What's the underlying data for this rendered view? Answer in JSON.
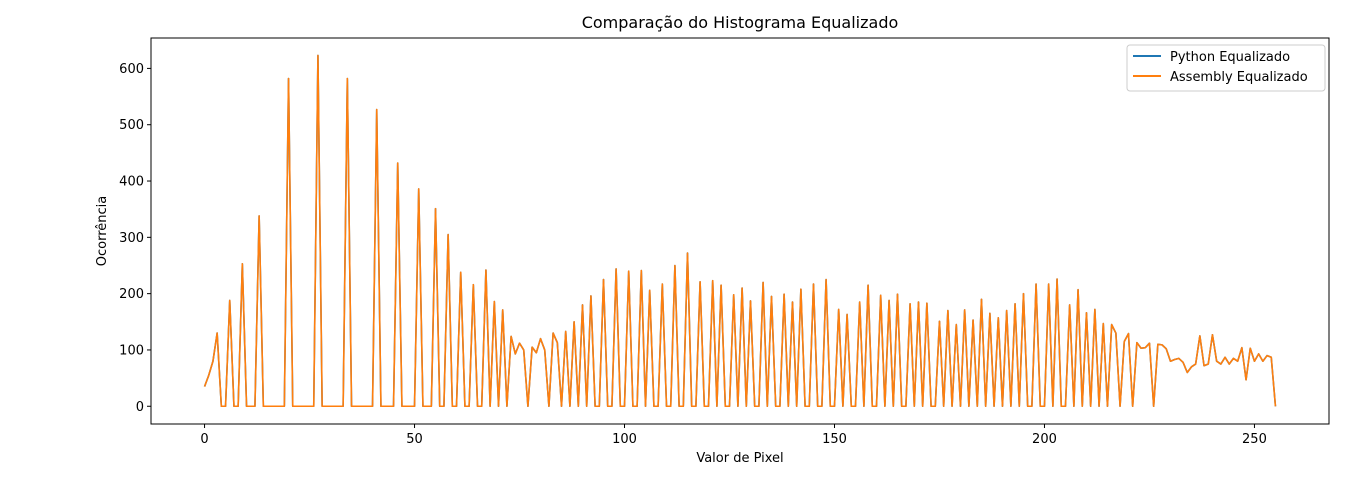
{
  "chart_data": {
    "type": "line",
    "title": "Comparação do Histograma Equalizado",
    "xlabel": "Valor de Pixel",
    "ylabel": "Ocorrência",
    "xlim": [
      -12.75,
      267.75
    ],
    "ylim": [
      -31.5,
      654
    ],
    "xticks": [
      0,
      50,
      100,
      150,
      200,
      250
    ],
    "yticks": [
      0,
      100,
      200,
      300,
      400,
      500,
      600
    ],
    "grid": false,
    "legend_position": "top-right",
    "x": [
      0,
      1,
      2,
      3,
      4,
      5,
      6,
      7,
      8,
      9,
      10,
      11,
      12,
      13,
      14,
      15,
      16,
      17,
      18,
      19,
      20,
      21,
      22,
      23,
      24,
      25,
      26,
      27,
      28,
      29,
      30,
      31,
      32,
      33,
      34,
      35,
      36,
      37,
      38,
      39,
      40,
      41,
      42,
      43,
      44,
      45,
      46,
      47,
      48,
      49,
      50,
      51,
      52,
      53,
      54,
      55,
      56,
      57,
      58,
      59,
      60,
      61,
      62,
      63,
      64,
      65,
      66,
      67,
      68,
      69,
      70,
      71,
      72,
      73,
      74,
      75,
      76,
      77,
      78,
      79,
      80,
      81,
      82,
      83,
      84,
      85,
      86,
      87,
      88,
      89,
      90,
      91,
      92,
      93,
      94,
      95,
      96,
      97,
      98,
      99,
      100,
      101,
      102,
      103,
      104,
      105,
      106,
      107,
      108,
      109,
      110,
      111,
      112,
      113,
      114,
      115,
      116,
      117,
      118,
      119,
      120,
      121,
      122,
      123,
      124,
      125,
      126,
      127,
      128,
      129,
      130,
      131,
      132,
      133,
      134,
      135,
      136,
      137,
      138,
      139,
      140,
      141,
      142,
      143,
      144,
      145,
      146,
      147,
      148,
      149,
      150,
      151,
      152,
      153,
      154,
      155,
      156,
      157,
      158,
      159,
      160,
      161,
      162,
      163,
      164,
      165,
      166,
      167,
      168,
      169,
      170,
      171,
      172,
      173,
      174,
      175,
      176,
      177,
      178,
      179,
      180,
      181,
      182,
      183,
      184,
      185,
      186,
      187,
      188,
      189,
      190,
      191,
      192,
      193,
      194,
      195,
      196,
      197,
      198,
      199,
      200,
      201,
      202,
      203,
      204,
      205,
      206,
      207,
      208,
      209,
      210,
      211,
      212,
      213,
      214,
      215,
      216,
      217,
      218,
      219,
      220,
      221,
      222,
      223,
      224,
      225,
      226,
      227,
      228,
      229,
      230,
      231,
      232,
      233,
      234,
      235,
      236,
      237,
      238,
      239,
      240,
      241,
      242,
      243,
      244,
      245,
      246,
      247,
      248,
      249,
      250,
      251,
      252,
      253,
      254,
      255
    ],
    "series": [
      {
        "name": "Python Equalizado",
        "color": "#1f77b4",
        "values": [
          35,
          55,
          80,
          130,
          0,
          0,
          188,
          0,
          0,
          253,
          0,
          0,
          0,
          338,
          0,
          0,
          0,
          0,
          0,
          0,
          582,
          0,
          0,
          0,
          0,
          0,
          0,
          623,
          0,
          0,
          0,
          0,
          0,
          0,
          582,
          0,
          0,
          0,
          0,
          0,
          0,
          527,
          0,
          0,
          0,
          0,
          432,
          0,
          0,
          0,
          0,
          386,
          0,
          0,
          0,
          351,
          0,
          0,
          305,
          0,
          0,
          238,
          0,
          0,
          216,
          0,
          0,
          242,
          0,
          186,
          0,
          171,
          0,
          124,
          93,
          112,
          100,
          0,
          105,
          95,
          120,
          100,
          0,
          130,
          113,
          0,
          133,
          0,
          150,
          0,
          180,
          0,
          196,
          0,
          0,
          225,
          0,
          0,
          244,
          0,
          0,
          240,
          0,
          0,
          241,
          0,
          206,
          0,
          0,
          217,
          0,
          0,
          250,
          0,
          0,
          272,
          0,
          0,
          221,
          0,
          0,
          223,
          0,
          215,
          0,
          0,
          198,
          0,
          210,
          0,
          187,
          0,
          0,
          220,
          0,
          195,
          0,
          0,
          199,
          0,
          185,
          0,
          208,
          0,
          0,
          217,
          0,
          0,
          225,
          0,
          0,
          172,
          0,
          163,
          0,
          0,
          185,
          0,
          215,
          0,
          0,
          197,
          0,
          188,
          0,
          199,
          0,
          0,
          182,
          0,
          185,
          0,
          183,
          0,
          0,
          151,
          0,
          170,
          0,
          145,
          0,
          171,
          0,
          153,
          0,
          190,
          0,
          165,
          0,
          157,
          0,
          170,
          0,
          182,
          0,
          200,
          0,
          0,
          217,
          0,
          0,
          217,
          0,
          226,
          0,
          0,
          180,
          0,
          207,
          0,
          166,
          0,
          172,
          0,
          147,
          0,
          145,
          130,
          0,
          115,
          129,
          0,
          113,
          103,
          104,
          112,
          0,
          110,
          109,
          102,
          80,
          83,
          85,
          78,
          60,
          70,
          75,
          125,
          72,
          75,
          127,
          80,
          75,
          87,
          75,
          85,
          80,
          104,
          47,
          103,
          80,
          93,
          80,
          90,
          87,
          0
        ]
      },
      {
        "name": "Assembly Equalizado",
        "color": "#ff7f0e",
        "values": [
          35,
          55,
          80,
          130,
          0,
          0,
          188,
          0,
          0,
          253,
          0,
          0,
          0,
          338,
          0,
          0,
          0,
          0,
          0,
          0,
          582,
          0,
          0,
          0,
          0,
          0,
          0,
          623,
          0,
          0,
          0,
          0,
          0,
          0,
          582,
          0,
          0,
          0,
          0,
          0,
          0,
          527,
          0,
          0,
          0,
          0,
          432,
          0,
          0,
          0,
          0,
          386,
          0,
          0,
          0,
          351,
          0,
          0,
          305,
          0,
          0,
          238,
          0,
          0,
          216,
          0,
          0,
          242,
          0,
          186,
          0,
          171,
          0,
          124,
          93,
          112,
          100,
          0,
          105,
          95,
          120,
          100,
          0,
          130,
          113,
          0,
          133,
          0,
          150,
          0,
          180,
          0,
          196,
          0,
          0,
          225,
          0,
          0,
          244,
          0,
          0,
          240,
          0,
          0,
          241,
          0,
          206,
          0,
          0,
          217,
          0,
          0,
          250,
          0,
          0,
          272,
          0,
          0,
          221,
          0,
          0,
          223,
          0,
          215,
          0,
          0,
          198,
          0,
          210,
          0,
          187,
          0,
          0,
          220,
          0,
          195,
          0,
          0,
          199,
          0,
          185,
          0,
          208,
          0,
          0,
          217,
          0,
          0,
          225,
          0,
          0,
          172,
          0,
          163,
          0,
          0,
          185,
          0,
          215,
          0,
          0,
          197,
          0,
          188,
          0,
          199,
          0,
          0,
          182,
          0,
          185,
          0,
          183,
          0,
          0,
          151,
          0,
          170,
          0,
          145,
          0,
          171,
          0,
          153,
          0,
          190,
          0,
          165,
          0,
          157,
          0,
          170,
          0,
          182,
          0,
          200,
          0,
          0,
          217,
          0,
          0,
          217,
          0,
          226,
          0,
          0,
          180,
          0,
          207,
          0,
          166,
          0,
          172,
          0,
          147,
          0,
          145,
          130,
          0,
          115,
          129,
          0,
          113,
          103,
          104,
          112,
          0,
          110,
          109,
          102,
          80,
          83,
          85,
          78,
          60,
          70,
          75,
          125,
          72,
          75,
          127,
          80,
          75,
          87,
          75,
          85,
          80,
          104,
          47,
          103,
          80,
          93,
          80,
          90,
          87,
          0
        ]
      }
    ]
  }
}
